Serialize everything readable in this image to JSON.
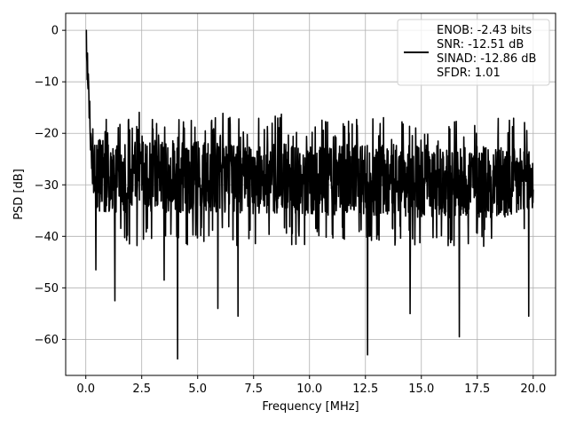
{
  "chart_data": {
    "type": "line",
    "xlabel": "Frequency [MHz]",
    "ylabel": "PSD [dB]",
    "xlim": [
      -0.9,
      21.0
    ],
    "ylim": [
      -67,
      3.3
    ],
    "xticks": [
      0.0,
      2.5,
      5.0,
      7.5,
      10.0,
      12.5,
      15.0,
      17.5,
      20.0
    ],
    "xtick_labels": [
      "0.0",
      "2.5",
      "5.0",
      "7.5",
      "10.0",
      "12.5",
      "15.0",
      "17.5",
      "20.0"
    ],
    "yticks": [
      0,
      -10,
      -20,
      -30,
      -40,
      -50,
      -60
    ],
    "ytick_labels": [
      "0",
      "−10",
      "−20",
      "−30",
      "−40",
      "−50",
      "−60"
    ],
    "grid": true,
    "legend_position": "top-right",
    "series": [
      {
        "color": "#000000",
        "x_range": [
          0,
          20
        ],
        "points": 1600,
        "baseline_db": -28,
        "upper_envelope_db": -18,
        "lower_envelope_db": -40,
        "peak_db": 0,
        "dips": [
          {
            "x": 0.45,
            "y": -46.5
          },
          {
            "x": 1.3,
            "y": -52.5
          },
          {
            "x": 3.5,
            "y": -48.5
          },
          {
            "x": 4.1,
            "y": -63.8
          },
          {
            "x": 5.9,
            "y": -54
          },
          {
            "x": 6.8,
            "y": -55.5
          },
          {
            "x": 12.6,
            "y": -63
          },
          {
            "x": 14.5,
            "y": -55
          },
          {
            "x": 16.7,
            "y": -59.5
          },
          {
            "x": 19.8,
            "y": -55.5
          }
        ]
      }
    ],
    "legend": [
      "ENOB: -2.43 bits",
      "SNR: -12.51 dB",
      "SINAD: -12.86 dB",
      "SFDR: 1.01"
    ]
  }
}
